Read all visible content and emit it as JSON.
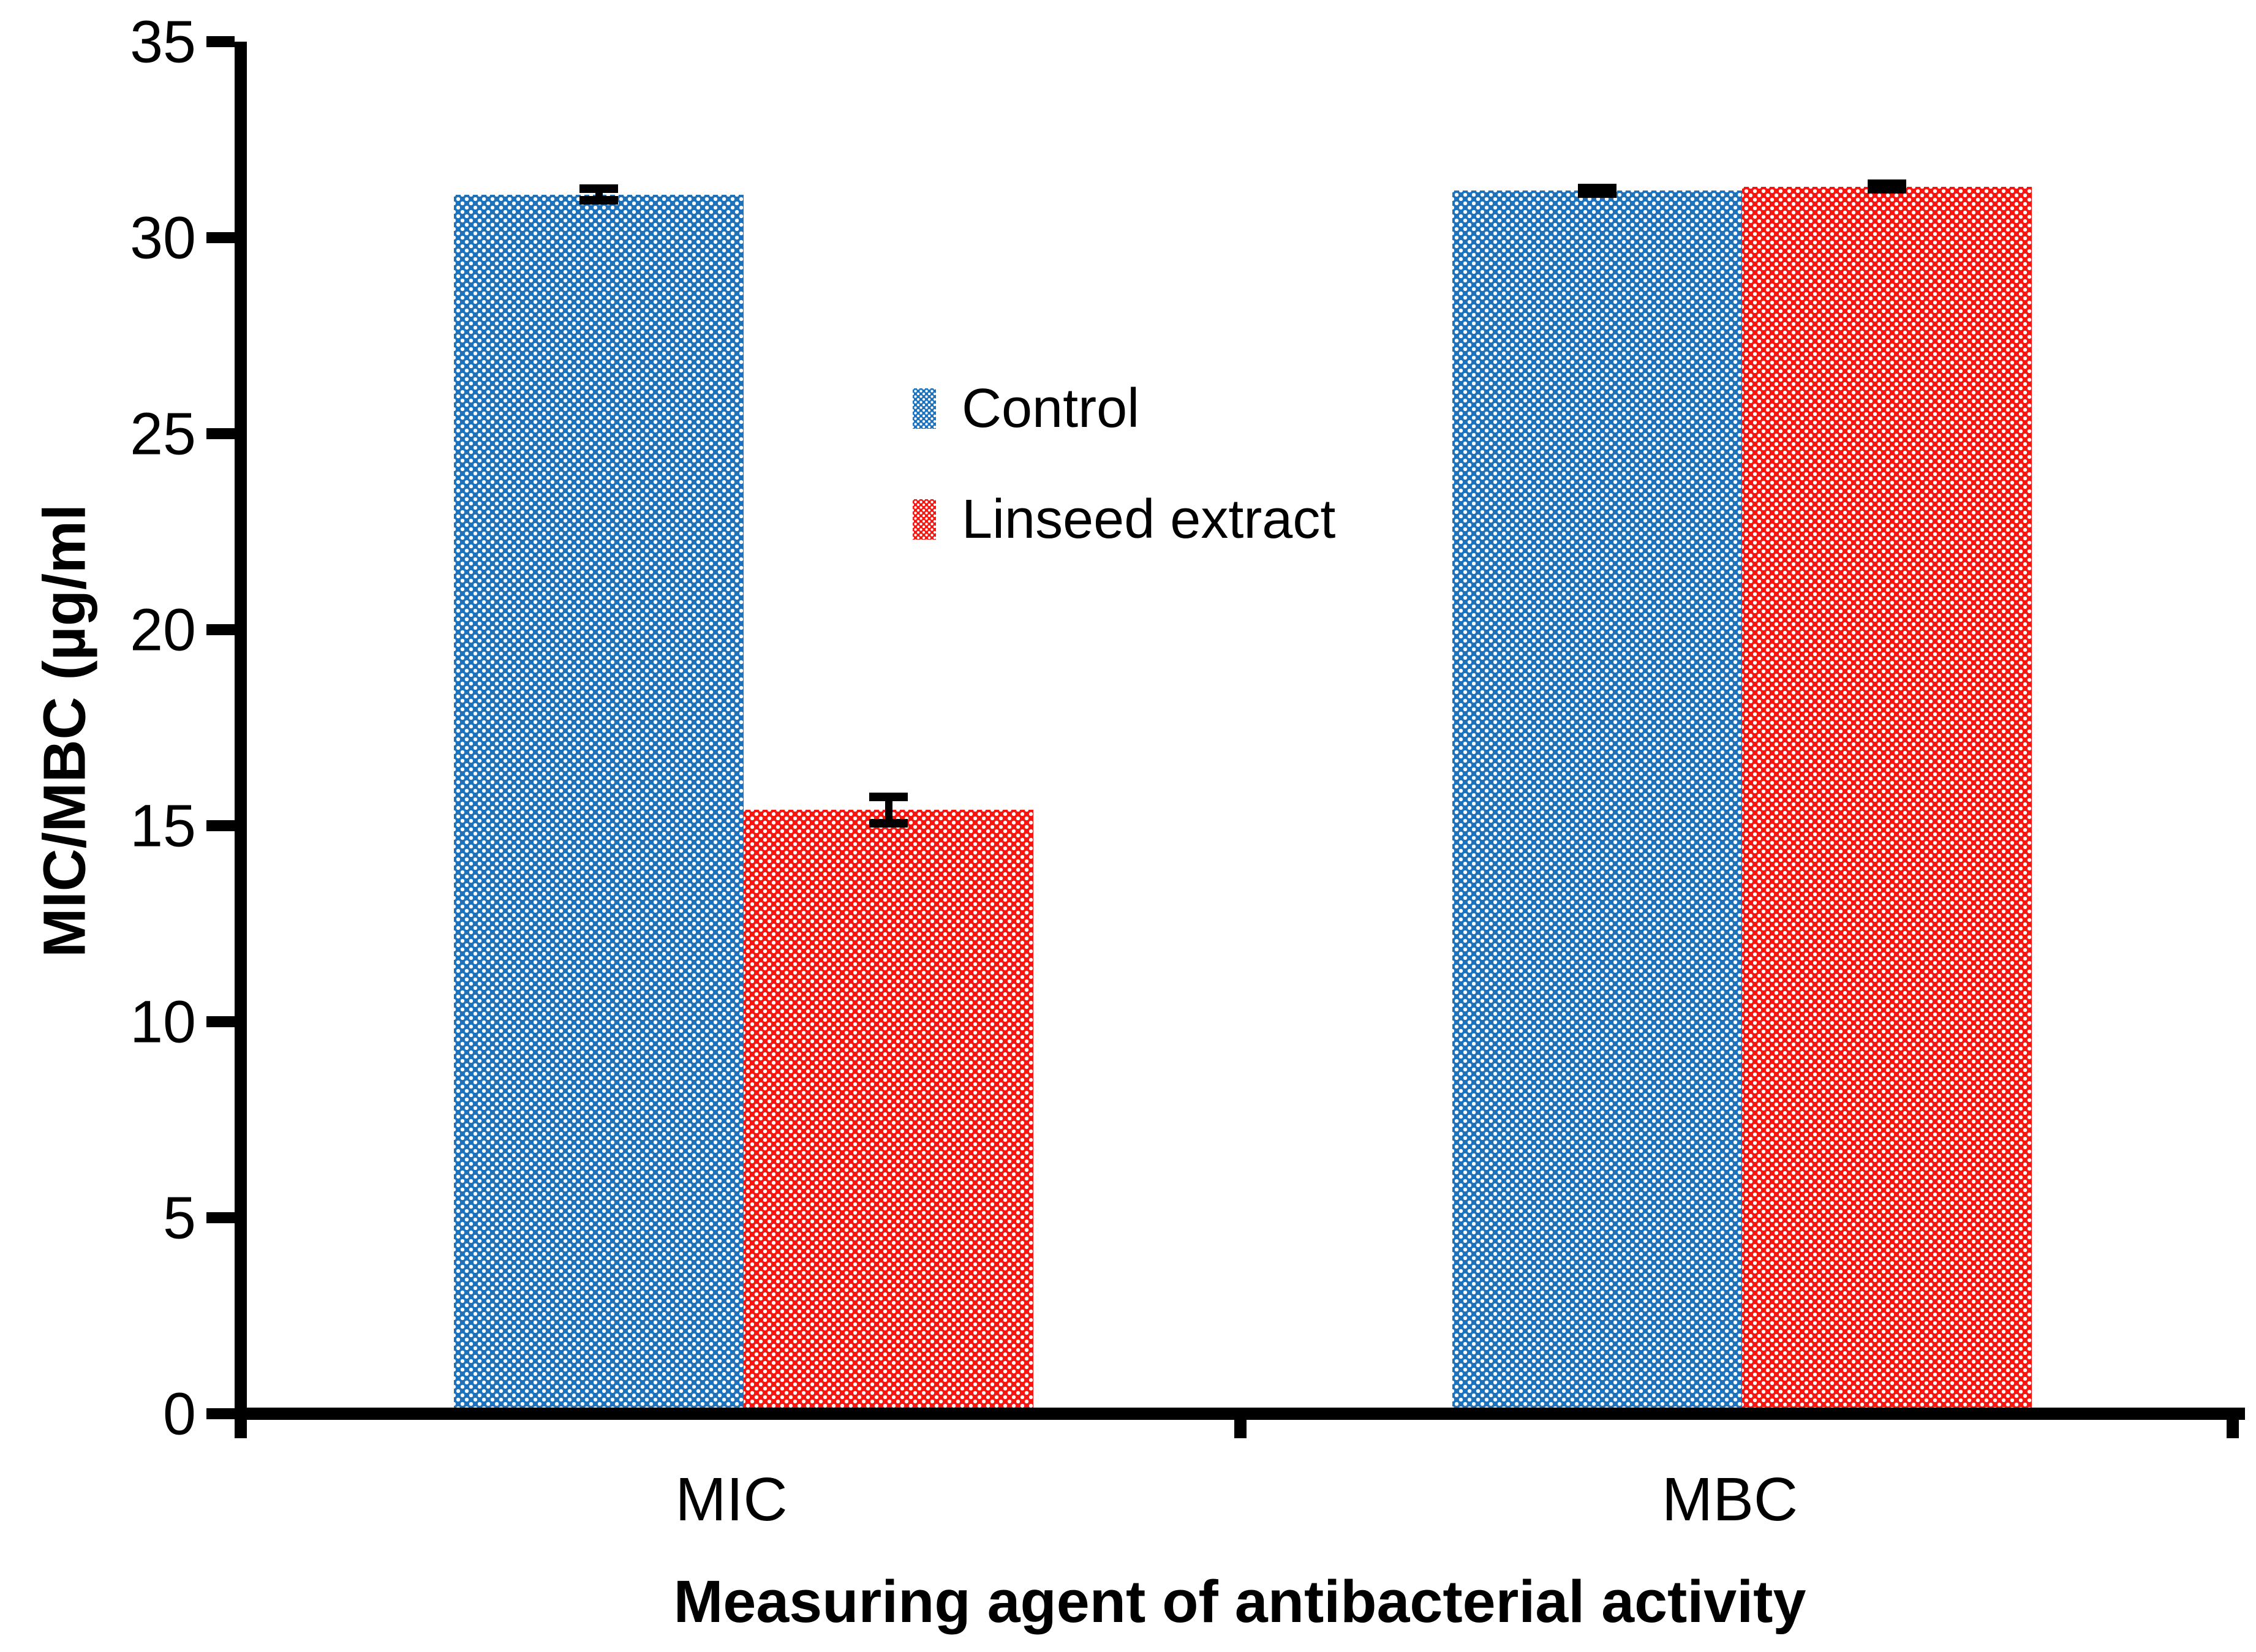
{
  "figure": {
    "background_color": "#ffffff",
    "axis_color": "#000000",
    "error_bar_color": "#000000",
    "text_color": "#000000"
  },
  "chart_data": {
    "type": "bar",
    "title": "",
    "xlabel": "Measuring agent of antibacterial activity",
    "ylabel": "MIC/MBC (µg/ml",
    "categories": [
      "MIC",
      "MBC"
    ],
    "series": [
      {
        "name": "Control",
        "color": "#1E71BB",
        "pattern": "white-dot-grid",
        "values": [
          31.1,
          31.2
        ],
        "errors": [
          0.15,
          0.07
        ]
      },
      {
        "name": "Linseed extract",
        "color": "#F9150F",
        "pattern": "white-dot-grid",
        "values": [
          15.4,
          31.3
        ],
        "errors": [
          0.33,
          0.07
        ]
      }
    ],
    "ylim": [
      0,
      35
    ],
    "yticks": [
      0,
      5,
      10,
      15,
      20,
      25,
      30,
      35
    ],
    "grid": false,
    "legend_position": "upper-left-of-center",
    "legend_entries": [
      "Control",
      "Linseed extract"
    ]
  }
}
